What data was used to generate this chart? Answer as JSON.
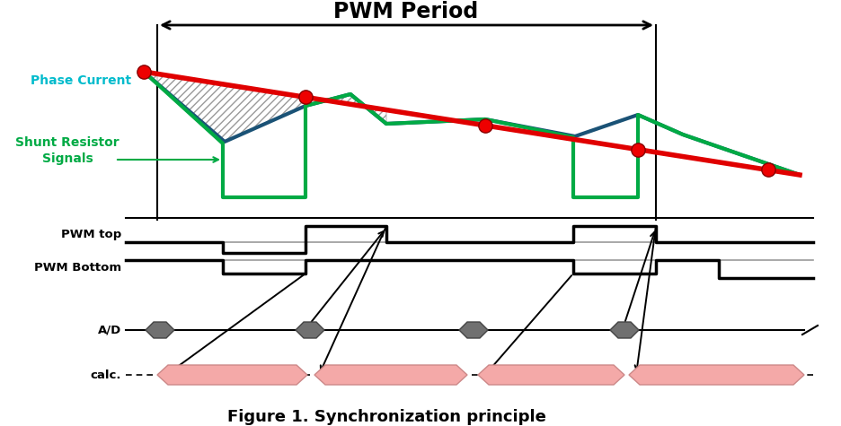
{
  "title": "Figure 1. Synchronization principle",
  "pwm_period_label": "PWM Period",
  "phase_current_label": "Phase Current",
  "shunt_resistor_label": "Shunt Resistor\nSignals",
  "pwm_top_label": "PWM top",
  "pwm_bottom_label": "PWM Bottom",
  "ad_label": "A/D",
  "calc_label": "calc.",
  "bg_color": "#ffffff",
  "phase_current_color": "#e00000",
  "blue_wave_color": "#1a5276",
  "green_wave_color": "#00aa44",
  "pwm_color": "#000000",
  "ad_color": "#707070",
  "calc_color": "#f4a9a8",
  "dot_color": "#ee0000",
  "cyan_label_color": "#00bbcc",
  "fig_width": 937,
  "fig_height": 475
}
